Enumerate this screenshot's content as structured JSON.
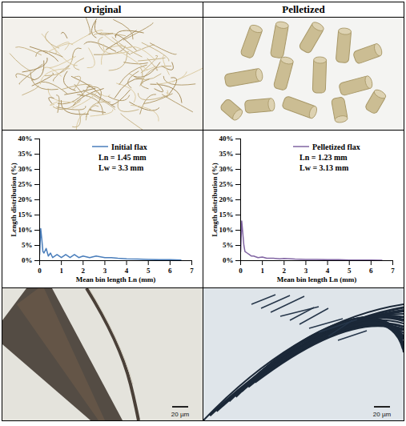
{
  "columns": [
    "Original",
    "Pelletized"
  ],
  "chart_data": [
    {
      "type": "line",
      "x_label": "Mean bin length Ln (mm)",
      "y_label": "Length distribution (%)",
      "xlim": [
        0,
        7
      ],
      "ylim": [
        0,
        40
      ],
      "xticks": [
        0,
        1,
        2,
        3,
        4,
        5,
        6,
        7
      ],
      "yticks": [
        {
          "value": 0,
          "label": "0%"
        },
        {
          "value": 5,
          "label": "5%"
        },
        {
          "value": 10,
          "label": "10%"
        },
        {
          "value": 15,
          "label": "15%"
        },
        {
          "value": 20,
          "label": "20%"
        },
        {
          "value": 25,
          "label": "25%"
        },
        {
          "value": 30,
          "label": "30%"
        },
        {
          "value": 35,
          "label": "35%"
        },
        {
          "value": 40,
          "label": "40%"
        }
      ],
      "legend": "top",
      "annotations": [
        "Ln = 1.45 mm",
        "Lw = 3.3 mm"
      ],
      "x": [
        0.0,
        0.05,
        0.1,
        0.15,
        0.2,
        0.3,
        0.4,
        0.5,
        0.6,
        0.8,
        1.0,
        1.2,
        1.4,
        1.6,
        1.8,
        2.0,
        2.3,
        2.6,
        3.0,
        3.3,
        3.6,
        4.0,
        4.5,
        5.0,
        5.5,
        6.0,
        6.5
      ],
      "series": [
        {
          "name": "Initial flax",
          "color": "#4a7ebb",
          "values": [
            2,
            10.5,
            7,
            3,
            2.5,
            4,
            1.5,
            2.5,
            1,
            2,
            1,
            2,
            1,
            2,
            1,
            1.5,
            1,
            1.5,
            1,
            1,
            0.8,
            0.6,
            0.5,
            0.4,
            0.3,
            0.3,
            0.2
          ]
        }
      ]
    },
    {
      "type": "line",
      "x_label": "Mean bin length Ln (mm)",
      "y_label": "Length distribution (%)",
      "xlim": [
        0,
        7
      ],
      "ylim": [
        0,
        40
      ],
      "xticks": [
        0,
        1,
        2,
        3,
        4,
        5,
        6,
        7
      ],
      "yticks": [
        {
          "value": 0,
          "label": "0%"
        },
        {
          "value": 5,
          "label": "5%"
        },
        {
          "value": 10,
          "label": "10%"
        },
        {
          "value": 15,
          "label": "15%"
        },
        {
          "value": 20,
          "label": "20%"
        },
        {
          "value": 25,
          "label": "25%"
        },
        {
          "value": 30,
          "label": "30%"
        },
        {
          "value": 35,
          "label": "35%"
        },
        {
          "value": 40,
          "label": "40%"
        }
      ],
      "legend": "top",
      "annotations": [
        "Ln = 1.23 mm",
        "Lw = 3.13 mm"
      ],
      "x": [
        0.0,
        0.05,
        0.1,
        0.15,
        0.2,
        0.3,
        0.4,
        0.5,
        0.6,
        0.8,
        1.0,
        1.2,
        1.5,
        1.8,
        2.0,
        2.5,
        3.0,
        3.5,
        4.0,
        4.5,
        5.0,
        5.5,
        6.0,
        6.5
      ],
      "series": [
        {
          "name": "Pelletized flax",
          "color": "#8064a2",
          "values": [
            3,
            13,
            9,
            5,
            3,
            2.5,
            2,
            1.5,
            1.5,
            1,
            1.2,
            0.8,
            0.8,
            0.6,
            0.7,
            0.5,
            0.4,
            0.4,
            0.3,
            0.3,
            0.2,
            0.2,
            0.2,
            0.1
          ]
        }
      ]
    }
  ],
  "scale_bars": [
    "20 µm",
    "20 µm"
  ]
}
